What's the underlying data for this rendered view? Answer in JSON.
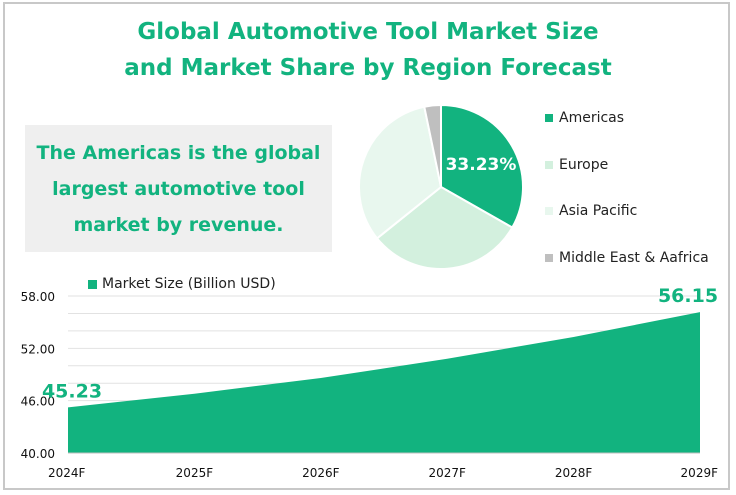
{
  "title_line1": "Global Automotive Tool Market Size",
  "title_line2": "and Market Share by Region Forecast",
  "callout": {
    "line1": "The Americas is the global",
    "line2": "largest automotive tool",
    "line3": "market by revenue."
  },
  "colors": {
    "accent": "#12b37f",
    "americas": "#12b37f",
    "europe": "#d3f0de",
    "asia_pacific": "#e8f7ee",
    "mea": "#bfbfbf",
    "gridline": "#e2e2e2",
    "callout_bg": "#efefef"
  },
  "chart_data": [
    {
      "type": "pie",
      "title": "Market Share by Region",
      "categories": [
        "Americas",
        "Europe",
        "Asia Pacific",
        "Middle East & Aafrica"
      ],
      "values": [
        33.23,
        31.0,
        32.5,
        3.27
      ],
      "data_labels": [
        "33.23%",
        "",
        "",
        ""
      ],
      "legend_position": "right"
    },
    {
      "type": "area",
      "title": "Market Size (Billion USD)",
      "legend": [
        "Market Size (Billion USD)"
      ],
      "x": [
        "2024F",
        "2025F",
        "2026F",
        "2027F",
        "2028F",
        "2029F"
      ],
      "series": [
        {
          "name": "Market Size (Billion USD)",
          "values": [
            45.23,
            46.8,
            48.6,
            50.8,
            53.3,
            56.15
          ]
        }
      ],
      "data_labels": [
        "45.23",
        "",
        "",
        "",
        "",
        "56.15"
      ],
      "yticks": [
        "40.00",
        "46.00",
        "52.00",
        "58.00"
      ],
      "ylim": [
        40,
        58
      ],
      "minor_grid_step": 2,
      "grid": true,
      "legend_position": "top-left"
    }
  ]
}
